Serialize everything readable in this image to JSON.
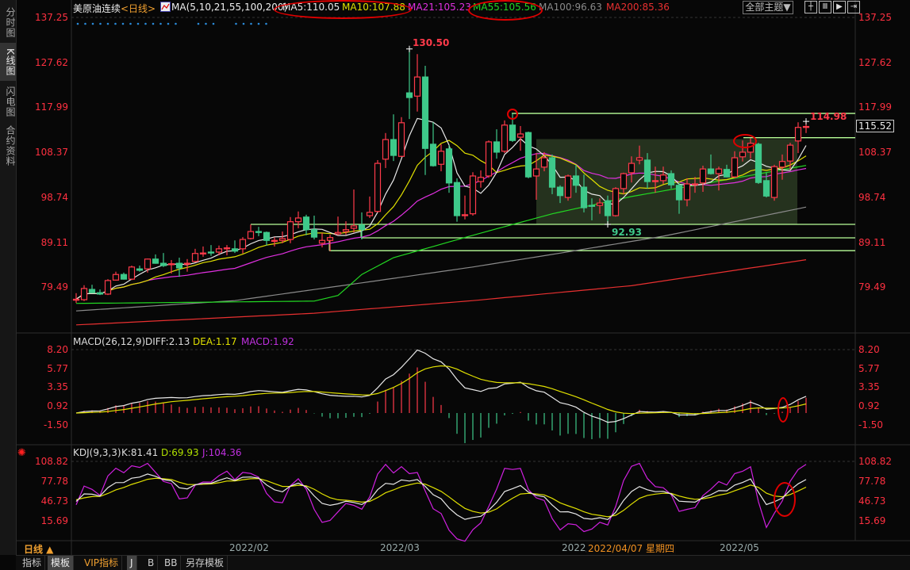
{
  "sidebar": {
    "tabs": [
      {
        "label": "分时图"
      },
      {
        "label": "K线图",
        "active": true
      },
      {
        "label": "闪电图"
      },
      {
        "label": "合约资料"
      }
    ]
  },
  "header": {
    "instrument": "美原油连续",
    "period": "<日线>",
    "ma_params": "MA(5,10,21,55,100,200)",
    "ma5": "MA5:110.05",
    "ma10": "MA10:107.88",
    "ma21": "MA21:105.23",
    "ma55": "MA55:105.56",
    "ma100": "MA100:96.63",
    "ma200": "MA200:85.36",
    "theme_button": "全部主题▼",
    "tool_icons": [
      "crosshair-icon",
      "zoom-range-icon",
      "play-forward-icon",
      "exit-right-icon"
    ]
  },
  "colors": {
    "up": "#ff3a4a",
    "down": "#3ec98a",
    "axis_text": "#ff3040",
    "ma5": "#e8e8e8",
    "ma10": "#e0e000",
    "ma21": "#e030e0",
    "ma55": "#22d822",
    "ma100": "#8a8a8a",
    "ma200": "#e83030",
    "annotation": "#b8ff98",
    "highlight_box": "#2a3a22",
    "marker": "#e00000"
  },
  "chart_data": {
    "type": "candlestick",
    "title": "美原油连续",
    "period": "日线",
    "price_ticks": [
      "137.25",
      "127.62",
      "117.99",
      "108.37",
      "98.74",
      "89.11",
      "79.49"
    ],
    "ylim": [
      72,
      140
    ],
    "ohlc_fields": [
      "open",
      "high",
      "low",
      "close"
    ],
    "ohlc": [
      [
        76.8,
        78.2,
        76.1,
        76.9
      ],
      [
        76.8,
        79.9,
        76.5,
        79.2
      ],
      [
        79.0,
        80.0,
        78.2,
        78.3
      ],
      [
        78.3,
        79.0,
        77.8,
        78.0
      ],
      [
        78.0,
        81.2,
        77.8,
        80.9
      ],
      [
        81.0,
        82.8,
        80.9,
        82.2
      ],
      [
        82.2,
        82.6,
        81.1,
        81.2
      ],
      [
        81.2,
        84.1,
        81.0,
        83.8
      ],
      [
        83.4,
        84.1,
        82.8,
        83.1
      ],
      [
        83.4,
        85.6,
        82.6,
        85.5
      ],
      [
        85.5,
        86.5,
        84.5,
        84.6
      ],
      [
        84.6,
        86.8,
        83.8,
        84.1
      ],
      [
        84.3,
        85.3,
        82.4,
        84.5
      ],
      [
        84.6,
        85.8,
        81.7,
        83.6
      ],
      [
        84.5,
        85.5,
        82.8,
        84.6
      ],
      [
        85.0,
        87.7,
        84.8,
        86.7
      ],
      [
        86.7,
        88.2,
        86.0,
        86.8
      ],
      [
        87.0,
        88.5,
        86.2,
        86.8
      ],
      [
        87.0,
        88.4,
        86.3,
        87.7
      ],
      [
        87.7,
        88.5,
        86.3,
        87.9
      ],
      [
        87.7,
        89.5,
        86.8,
        87.2
      ],
      [
        87.7,
        90.2,
        86.7,
        89.7
      ],
      [
        89.9,
        92.9,
        89.7,
        91.4
      ],
      [
        91.4,
        92.4,
        90.4,
        91.2
      ],
      [
        91.2,
        91.4,
        88.4,
        89.5
      ],
      [
        89.4,
        90.2,
        88.2,
        89.5
      ],
      [
        89.5,
        91.4,
        88.9,
        89.9
      ],
      [
        89.7,
        94.5,
        88.9,
        93.5
      ],
      [
        93.5,
        95.7,
        92.1,
        94.3
      ],
      [
        94.5,
        95.0,
        90.6,
        91.8
      ],
      [
        91.8,
        94.8,
        89.7,
        90.2
      ],
      [
        88.9,
        91.1,
        88.0,
        89.5
      ],
      [
        89.5,
        90.7,
        87.2,
        90.1
      ],
      [
        90.9,
        94.6,
        90.6,
        91.2
      ],
      [
        91.4,
        93.6,
        90.7,
        91.8
      ],
      [
        92.1,
        100.4,
        91.2,
        92.6
      ],
      [
        92.8,
        95.5,
        89.7,
        91.8
      ],
      [
        94.8,
        98.9,
        94.3,
        95.5
      ],
      [
        95.7,
        106.7,
        95.5,
        106.0
      ],
      [
        106.9,
        112.5,
        105.0,
        111.1
      ],
      [
        111.1,
        116.5,
        106.5,
        107.7
      ],
      [
        107.5,
        115.9,
        107.4,
        114.7
      ],
      [
        121.1,
        130.5,
        115.5,
        120.1
      ],
      [
        120.4,
        129.4,
        117.1,
        124.5
      ],
      [
        124.5,
        126.9,
        103.5,
        109.2
      ],
      [
        110.1,
        114.8,
        105.3,
        105.5
      ],
      [
        105.8,
        110.1,
        104.3,
        108.6
      ],
      [
        109.1,
        109.9,
        99.7,
        101.8
      ],
      [
        101.9,
        102.8,
        93.5,
        94.8
      ],
      [
        94.8,
        99.1,
        94.0,
        95.0
      ],
      [
        95.2,
        104.1,
        94.8,
        103.3
      ],
      [
        102.1,
        104.5,
        100.8,
        103.0
      ],
      [
        103.3,
        110.9,
        102.9,
        110.6
      ],
      [
        110.6,
        113.3,
        107.0,
        108.4
      ],
      [
        108.6,
        115.2,
        108.2,
        114.2
      ],
      [
        114.2,
        116.7,
        110.6,
        110.9
      ],
      [
        111.6,
        114.0,
        108.7,
        112.3
      ],
      [
        112.6,
        112.8,
        102.8,
        103.1
      ],
      [
        103.3,
        108.2,
        98.2,
        104.8
      ],
      [
        105.2,
        108.4,
        104.3,
        107.2
      ],
      [
        107.2,
        107.9,
        99.4,
        100.9
      ],
      [
        100.9,
        101.3,
        97.5,
        99.1
      ],
      [
        98.7,
        103.6,
        98.0,
        103.3
      ],
      [
        103.3,
        105.7,
        99.7,
        101.3
      ],
      [
        100.9,
        103.6,
        95.5,
        96.5
      ],
      [
        97.0,
        98.5,
        93.8,
        96.8
      ],
      [
        97.0,
        98.5,
        95.2,
        97.5
      ],
      [
        98.0,
        99.1,
        92.93,
        94.8
      ],
      [
        94.8,
        100.9,
        94.6,
        100.6
      ],
      [
        100.6,
        104.0,
        99.4,
        103.8
      ],
      [
        104.0,
        107.5,
        101.9,
        106.0
      ],
      [
        106.7,
        109.8,
        105.8,
        107.2
      ],
      [
        106.7,
        108.2,
        100.6,
        102.1
      ],
      [
        102.1,
        105.3,
        99.7,
        102.3
      ],
      [
        102.3,
        105.3,
        101.6,
        103.5
      ],
      [
        103.8,
        104.5,
        100.6,
        101.4
      ],
      [
        101.3,
        101.8,
        95.2,
        98.2
      ],
      [
        98.2,
        102.8,
        96.8,
        101.6
      ],
      [
        101.4,
        103.1,
        99.7,
        101.6
      ],
      [
        101.8,
        105.5,
        99.9,
        104.8
      ],
      [
        104.8,
        107.9,
        103.6,
        103.8
      ],
      [
        103.8,
        105.3,
        100.2,
        104.8
      ],
      [
        104.7,
        105.7,
        103.0,
        103.1
      ],
      [
        103.1,
        108.6,
        102.8,
        107.2
      ],
      [
        107.4,
        110.9,
        106.4,
        108.4
      ],
      [
        108.4,
        111.4,
        107.0,
        110.3
      ],
      [
        110.1,
        110.4,
        101.6,
        101.9
      ],
      [
        102.3,
        104.0,
        98.7,
        99.0
      ],
      [
        98.7,
        105.7,
        98.0,
        105.3
      ],
      [
        105.2,
        107.9,
        102.5,
        106.4
      ],
      [
        106.5,
        110.4,
        104.7,
        109.9
      ],
      [
        110.8,
        114.8,
        108.2,
        113.7
      ],
      [
        113.7,
        114.98,
        112.5,
        113.9
      ]
    ],
    "moving_averages_computed": [
      "ma5",
      "ma10",
      "ma21"
    ],
    "ma55_points": [
      [
        0,
        76.0
      ],
      [
        30,
        76.5
      ],
      [
        33,
        77.7
      ],
      [
        36,
        82.2
      ],
      [
        40,
        85.8
      ],
      [
        50,
        90.6
      ],
      [
        60,
        95.2
      ],
      [
        70,
        98.9
      ],
      [
        80,
        101.9
      ],
      [
        92,
        105.56
      ]
    ],
    "ma100_points": [
      [
        0,
        74.4
      ],
      [
        20,
        76.6
      ],
      [
        36,
        80.4
      ],
      [
        50,
        83.8
      ],
      [
        60,
        86.5
      ],
      [
        74,
        90.4
      ],
      [
        92,
        96.63
      ]
    ],
    "ma200_points": [
      [
        0,
        71.4
      ],
      [
        30,
        73.9
      ],
      [
        50,
        76.6
      ],
      [
        70,
        79.8
      ],
      [
        92,
        85.36
      ]
    ],
    "labels": {
      "period_high": "130.50",
      "period_low": "92.93",
      "recent_high": "114.98",
      "current_price": "115.52"
    },
    "x_ticks": [
      "2022/02",
      "2022/03",
      "2022/",
      "2022/05"
    ],
    "crosshair_date": "2022/04/07 星期四",
    "macd": {
      "title": "MACD(26,12,9)",
      "diff": "DIFF:2.13",
      "dea": "DEA:1.17",
      "macd": "MACD:1.92",
      "ticks": [
        "8.20",
        "5.77",
        "3.35",
        "0.92",
        "-1.50"
      ]
    },
    "kdj": {
      "title": "KDJ(9,3,3)",
      "k": "K:81.41",
      "d": "D:69.93",
      "j": "J:104.36",
      "ticks": [
        "108.82",
        "77.78",
        "46.73",
        "15.69"
      ]
    }
  },
  "bottom": {
    "period_button": "日线 ▲",
    "buttons": [
      "指标",
      "模板",
      "VIP指标",
      "J",
      "B",
      "BB",
      "另存模板"
    ]
  }
}
